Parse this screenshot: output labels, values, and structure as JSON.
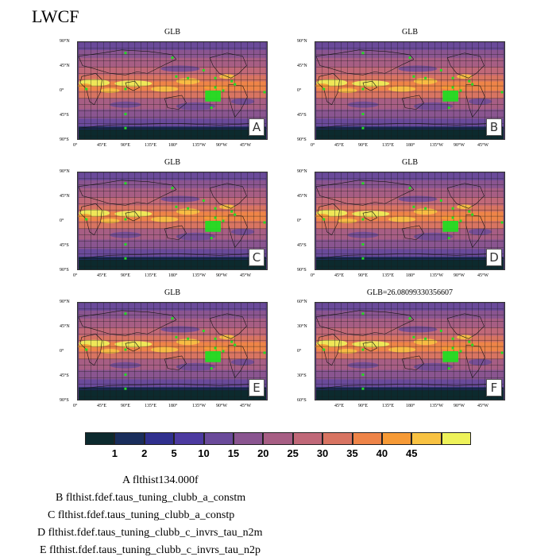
{
  "figure_title": "LWCF",
  "panels": [
    {
      "id": "A",
      "title": "GLB",
      "ylabels": [
        "90°N",
        "45°N",
        "0°",
        "45°S",
        "90°S"
      ],
      "xlabels": [
        "0°",
        "45°E",
        "90°E",
        "135°E",
        "180°",
        "135°W",
        "90°W",
        "45°W"
      ]
    },
    {
      "id": "B",
      "title": "GLB",
      "ylabels": [
        "90°N",
        "45°N",
        "0°",
        "45°S",
        "90°S"
      ],
      "xlabels": [
        "0°",
        "45°E",
        "90°E",
        "135°E",
        "180°",
        "135°W",
        "90°W",
        "45°W"
      ]
    },
    {
      "id": "C",
      "title": "GLB",
      "ylabels": [
        "90°N",
        "45°N",
        "0°",
        "45°S",
        "90°S"
      ],
      "xlabels": [
        "0°",
        "45°E",
        "90°E",
        "135°E",
        "180°",
        "135°W",
        "90°W",
        "45°W"
      ]
    },
    {
      "id": "D",
      "title": "GLB",
      "ylabels": [
        "90°N",
        "45°N",
        "0°",
        "45°S",
        "90°S"
      ],
      "xlabels": [
        "0°",
        "45°E",
        "90°E",
        "135°E",
        "180°",
        "135°W",
        "90°W",
        "45°W"
      ]
    },
    {
      "id": "E",
      "title": "GLB",
      "ylabels": [
        "90°N",
        "45°N",
        "0°",
        "45°S",
        "90°S"
      ],
      "xlabels": [
        "0°",
        "45°E",
        "90°E",
        "135°E",
        "180°",
        "135°W",
        "90°W",
        "45°W"
      ]
    },
    {
      "id": "F",
      "title": "GLB=26.08099330356607",
      "ylabels": [
        "60°N",
        "30°N",
        "0°",
        "30°S",
        "60°S"
      ],
      "xlabels": [
        "45°E",
        "90°E",
        "135°E",
        "180°",
        "135°W",
        "90°W",
        "45°W"
      ]
    }
  ],
  "colorbar": {
    "colors": [
      "#0c2a2e",
      "#1a2e5c",
      "#30308e",
      "#4c3aa0",
      "#6a4a9a",
      "#8a5590",
      "#a75e84",
      "#c06878",
      "#d87462",
      "#ee8448",
      "#f69a36",
      "#f8c242",
      "#eef25a"
    ],
    "tick_labels": [
      "1",
      "2",
      "5",
      "10",
      "15",
      "20",
      "25",
      "30",
      "35",
      "40",
      "45"
    ]
  },
  "legend": [
    "A  flthist134.000f",
    "B  flthist.fdef.taus_tuning_clubb_a_constm",
    "C  flthist.fdef.taus_tuning_clubb_a_constp",
    "D  flthist.fdef.taus_tuning_clubb_c_invrs_tau_n2m",
    "E  flthist.fdef.taus_tuning_clubb_c_invrs_tau_n2p"
  ],
  "chart_data": {
    "type": "heatmap",
    "title": "LWCF",
    "variable": "LWCF",
    "levels": [
      1,
      2,
      5,
      10,
      15,
      20,
      25,
      30,
      35,
      40,
      45
    ],
    "panels": [
      {
        "label": "A",
        "title": "GLB",
        "case": "flthist134.000f"
      },
      {
        "label": "B",
        "title": "GLB",
        "case": "flthist.fdef.taus_tuning_clubb_a_constm"
      },
      {
        "label": "C",
        "title": "GLB",
        "case": "flthist.fdef.taus_tuning_clubb_a_constp"
      },
      {
        "label": "D",
        "title": "GLB",
        "case": "flthist.fdef.taus_tuning_clubb_c_invrs_tau_n2m"
      },
      {
        "label": "E",
        "title": "GLB",
        "case": "flthist.fdef.taus_tuning_clubb_c_invrs_tau_n2p"
      },
      {
        "label": "F",
        "title": "GLB=26.08099330356607",
        "global_mean": 26.08099330356607
      }
    ]
  }
}
